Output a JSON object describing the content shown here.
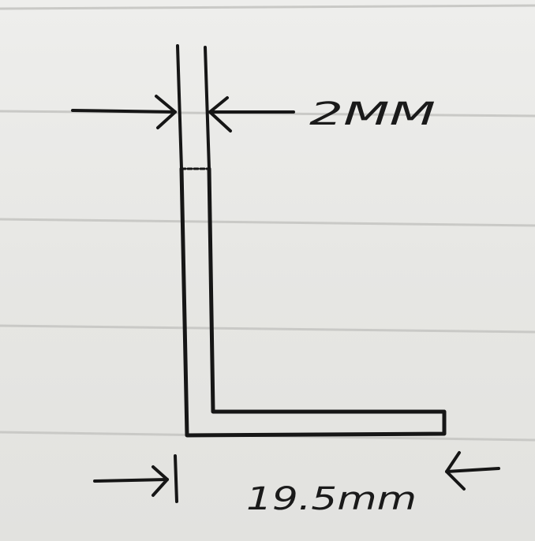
{
  "sketch": {
    "shape": "L-shaped angle section",
    "ruled_lines": 5,
    "colors": {
      "paper": "#e9e9e7",
      "rule_line": "#c9c9c6",
      "ink": "#161616"
    }
  },
  "dimensions": {
    "thickness_label": "2MM",
    "width_label": "19.5mm"
  }
}
